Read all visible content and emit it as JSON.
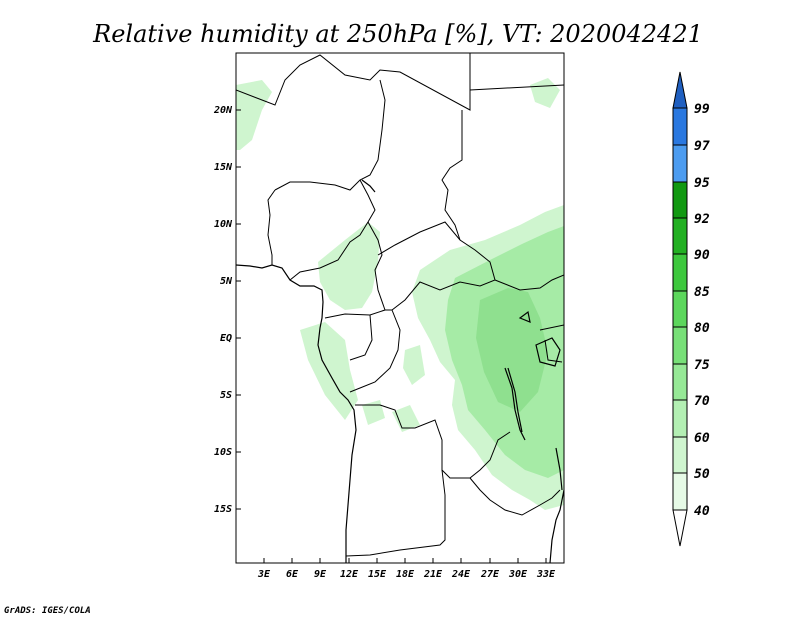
{
  "title": "Relative humidity at 250hPa [%], VT: 2020042421",
  "credit": "GrADS: IGES/COLA",
  "map": {
    "lat_labels": [
      "20N",
      "15N",
      "10N",
      "5N",
      "EQ",
      "5S",
      "10S",
      "15S"
    ],
    "lon_labels": [
      "3E",
      "6E",
      "9E",
      "12E",
      "15E",
      "18E",
      "21E",
      "24E",
      "27E",
      "30E",
      "33E"
    ]
  },
  "colorbar": {
    "levels": [
      "40",
      "50",
      "60",
      "70",
      "75",
      "80",
      "85",
      "90",
      "92",
      "95",
      "97",
      "99"
    ],
    "colors": [
      "#ffffff",
      "#e6fae6",
      "#cff5cf",
      "#b3efb3",
      "#96e896",
      "#78e078",
      "#5cd75c",
      "#3dc83d",
      "#22b022",
      "#119911",
      "#4c9cf0",
      "#2a78e0",
      "#1f5fc0"
    ]
  }
}
